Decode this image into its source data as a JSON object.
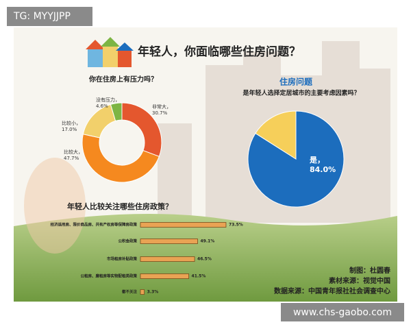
{
  "header": {
    "title": "年轻人，你面临哪些住房问题？"
  },
  "chart_data": [
    {
      "type": "donut",
      "title": "你在住房上有压力吗？",
      "categories": [
        "非常大，",
        "比较大，",
        "比较小，",
        "没有压力，"
      ],
      "values": [
        30.7,
        47.7,
        17.0,
        4.6
      ],
      "value_labels": [
        "30.7%",
        "47.7%",
        "17.0%",
        "4.6%"
      ],
      "colors": [
        "#e4572e",
        "#f5891f",
        "#f2d06b",
        "#7db544"
      ]
    },
    {
      "type": "pie",
      "title": "住房问题",
      "subtitle": "是年轻人选择定居城市的主要考虑因素吗？",
      "categories": [
        "是，",
        null
      ],
      "values": [
        84.0,
        16.0
      ],
      "value_labels": [
        "84.0%",
        null
      ],
      "colors": [
        "#1c6dbd",
        "#f6cf5a"
      ]
    },
    {
      "type": "hbar",
      "title": "年轻人比较关注哪些住房政策？",
      "categories": [
        "经济适用房、限价商品房、共有产权房等保障房政策",
        "公积金政策",
        "市场租房补贴政策",
        "公租房、廉租房等实物配租类政策",
        "都不关注"
      ],
      "values": [
        73.5,
        49.1,
        46.5,
        41.5,
        3.3
      ],
      "value_labels": [
        "73.5%",
        "49.1%",
        "46.5%",
        "41.5%",
        "3.3%"
      ],
      "color": "#e9a354"
    }
  ],
  "credits": [
    "制图：杜圆春",
    "素材来源：视觉中国",
    "数据来源：中国青年报社社会调查中心"
  ],
  "watermarks": [
    "TG: MYYJJPP",
    "www.chs-gaobo.com"
  ]
}
